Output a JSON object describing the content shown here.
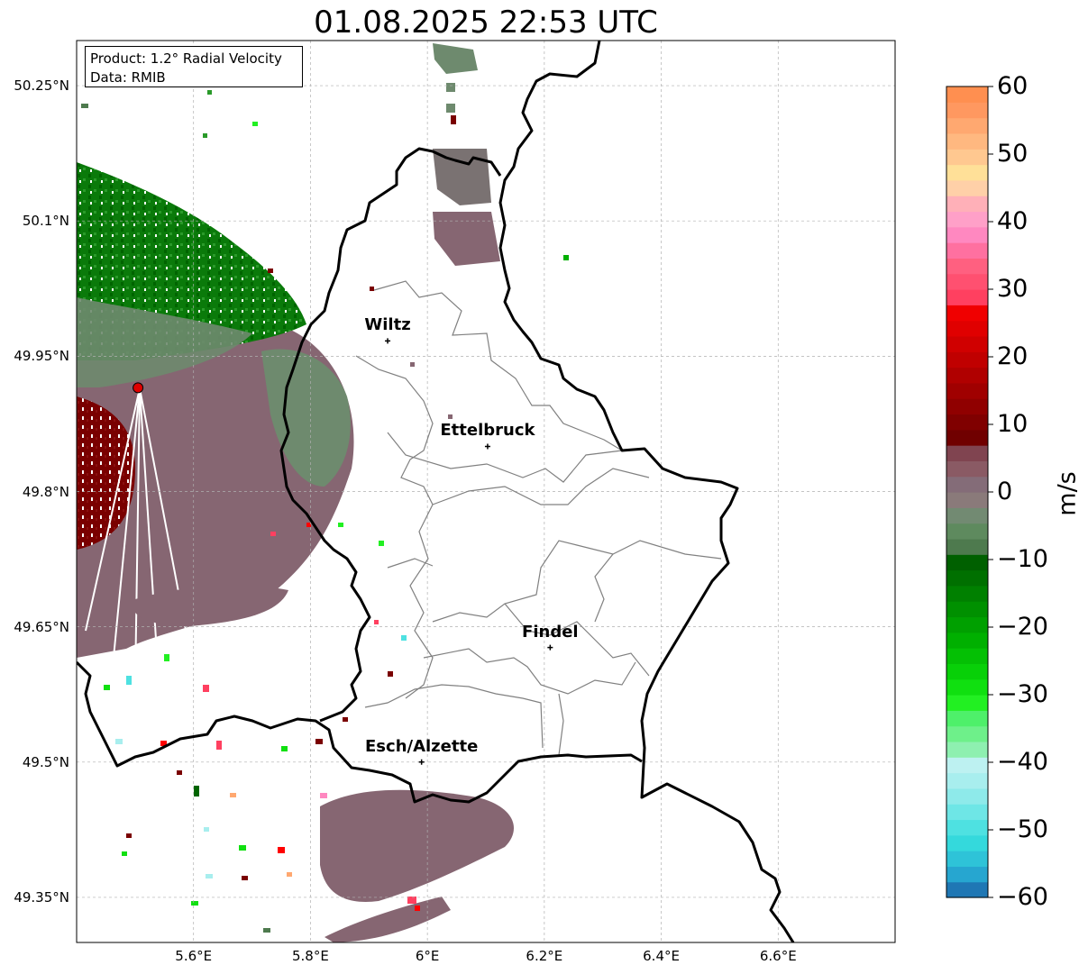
{
  "title": "01.08.2025 22:53 UTC",
  "info": {
    "product": "Product: 1.2° Radial Velocity",
    "data": "Data: RMIB"
  },
  "lat_ticks": [
    {
      "value": 50.25,
      "label": "50.25°N"
    },
    {
      "value": 50.1,
      "label": "50.1°N"
    },
    {
      "value": 49.95,
      "label": "49.95°N"
    },
    {
      "value": 49.8,
      "label": "49.8°N"
    },
    {
      "value": 49.65,
      "label": "49.65°N"
    },
    {
      "value": 49.5,
      "label": "49.5°N"
    },
    {
      "value": 49.35,
      "label": "49.35°N"
    }
  ],
  "lon_ticks": [
    {
      "value": 5.6,
      "label": "5.6°E"
    },
    {
      "value": 5.8,
      "label": "5.8°E"
    },
    {
      "value": 6.0,
      "label": "6°E"
    },
    {
      "value": 6.2,
      "label": "6.2°E"
    },
    {
      "value": 6.4,
      "label": "6.4°E"
    },
    {
      "value": 6.6,
      "label": "6.6°E"
    }
  ],
  "extent": {
    "lon": [
      5.4,
      6.8
    ],
    "lat": [
      49.3,
      50.3
    ]
  },
  "cities": [
    {
      "name": "Wiltz",
      "lon": 5.932,
      "lat": 49.967
    },
    {
      "name": "Ettelbruck",
      "lon": 6.103,
      "lat": 49.85
    },
    {
      "name": "Findel",
      "lon": 6.21,
      "lat": 49.627
    },
    {
      "name": "Esch/Alzette",
      "lon": 5.99,
      "lat": 49.5
    }
  ],
  "radar_site": {
    "lon": 5.505,
    "lat": 49.915,
    "color": "#e00000"
  },
  "colorbar": {
    "label": "m/s",
    "min": -60,
    "max": 60,
    "ticks": [
      {
        "value": 60,
        "label": "60"
      },
      {
        "value": 50,
        "label": "50"
      },
      {
        "value": 40,
        "label": "40"
      },
      {
        "value": 30,
        "label": "30"
      },
      {
        "value": 20,
        "label": "20"
      },
      {
        "value": 10,
        "label": "10"
      },
      {
        "value": 0,
        "label": "0"
      },
      {
        "value": -10,
        "label": "−10"
      },
      {
        "value": -20,
        "label": "−20"
      },
      {
        "value": -30,
        "label": "−30"
      },
      {
        "value": -40,
        "label": "−40"
      },
      {
        "value": -50,
        "label": "−50"
      },
      {
        "value": -60,
        "label": "−60"
      }
    ],
    "colors": [
      "#1f77b4",
      "#26a6d0",
      "#2ec3d8",
      "#34d9dc",
      "#4ee1e1",
      "#6ee6e6",
      "#8eeaea",
      "#a8eeee",
      "#bdf1f1",
      "#8ef0b0",
      "#6ef08a",
      "#4ef06a",
      "#22f022",
      "#10e010",
      "#08d008",
      "#04c004",
      "#00b000",
      "#00a000",
      "#009000",
      "#008000",
      "#007000",
      "#006000",
      "#4e7a4e",
      "#5e8a5e",
      "#728a72",
      "#8a7a7a",
      "#846c78",
      "#8a5a64",
      "#804450",
      "#700000",
      "#800000",
      "#900000",
      "#a00000",
      "#b00000",
      "#c00000",
      "#d00000",
      "#e00000",
      "#f00000",
      "#ff4060",
      "#ff5070",
      "#ff6080",
      "#ff70a0",
      "#ff88c0",
      "#ffa0c8",
      "#ffb0b8",
      "#ffd0a8",
      "#ffe098",
      "#ffc890",
      "#ffb880",
      "#ffa870",
      "#ff9860",
      "#ff8f50"
    ]
  },
  "colors": {
    "border": "#000000",
    "canton": "#808080",
    "grid": "#b0b0b0",
    "echo_gray_red": "#866672",
    "echo_gray_green": "#6e8a6e",
    "echo_dark_green": "#006400",
    "echo_dark_red": "#7a0000"
  }
}
